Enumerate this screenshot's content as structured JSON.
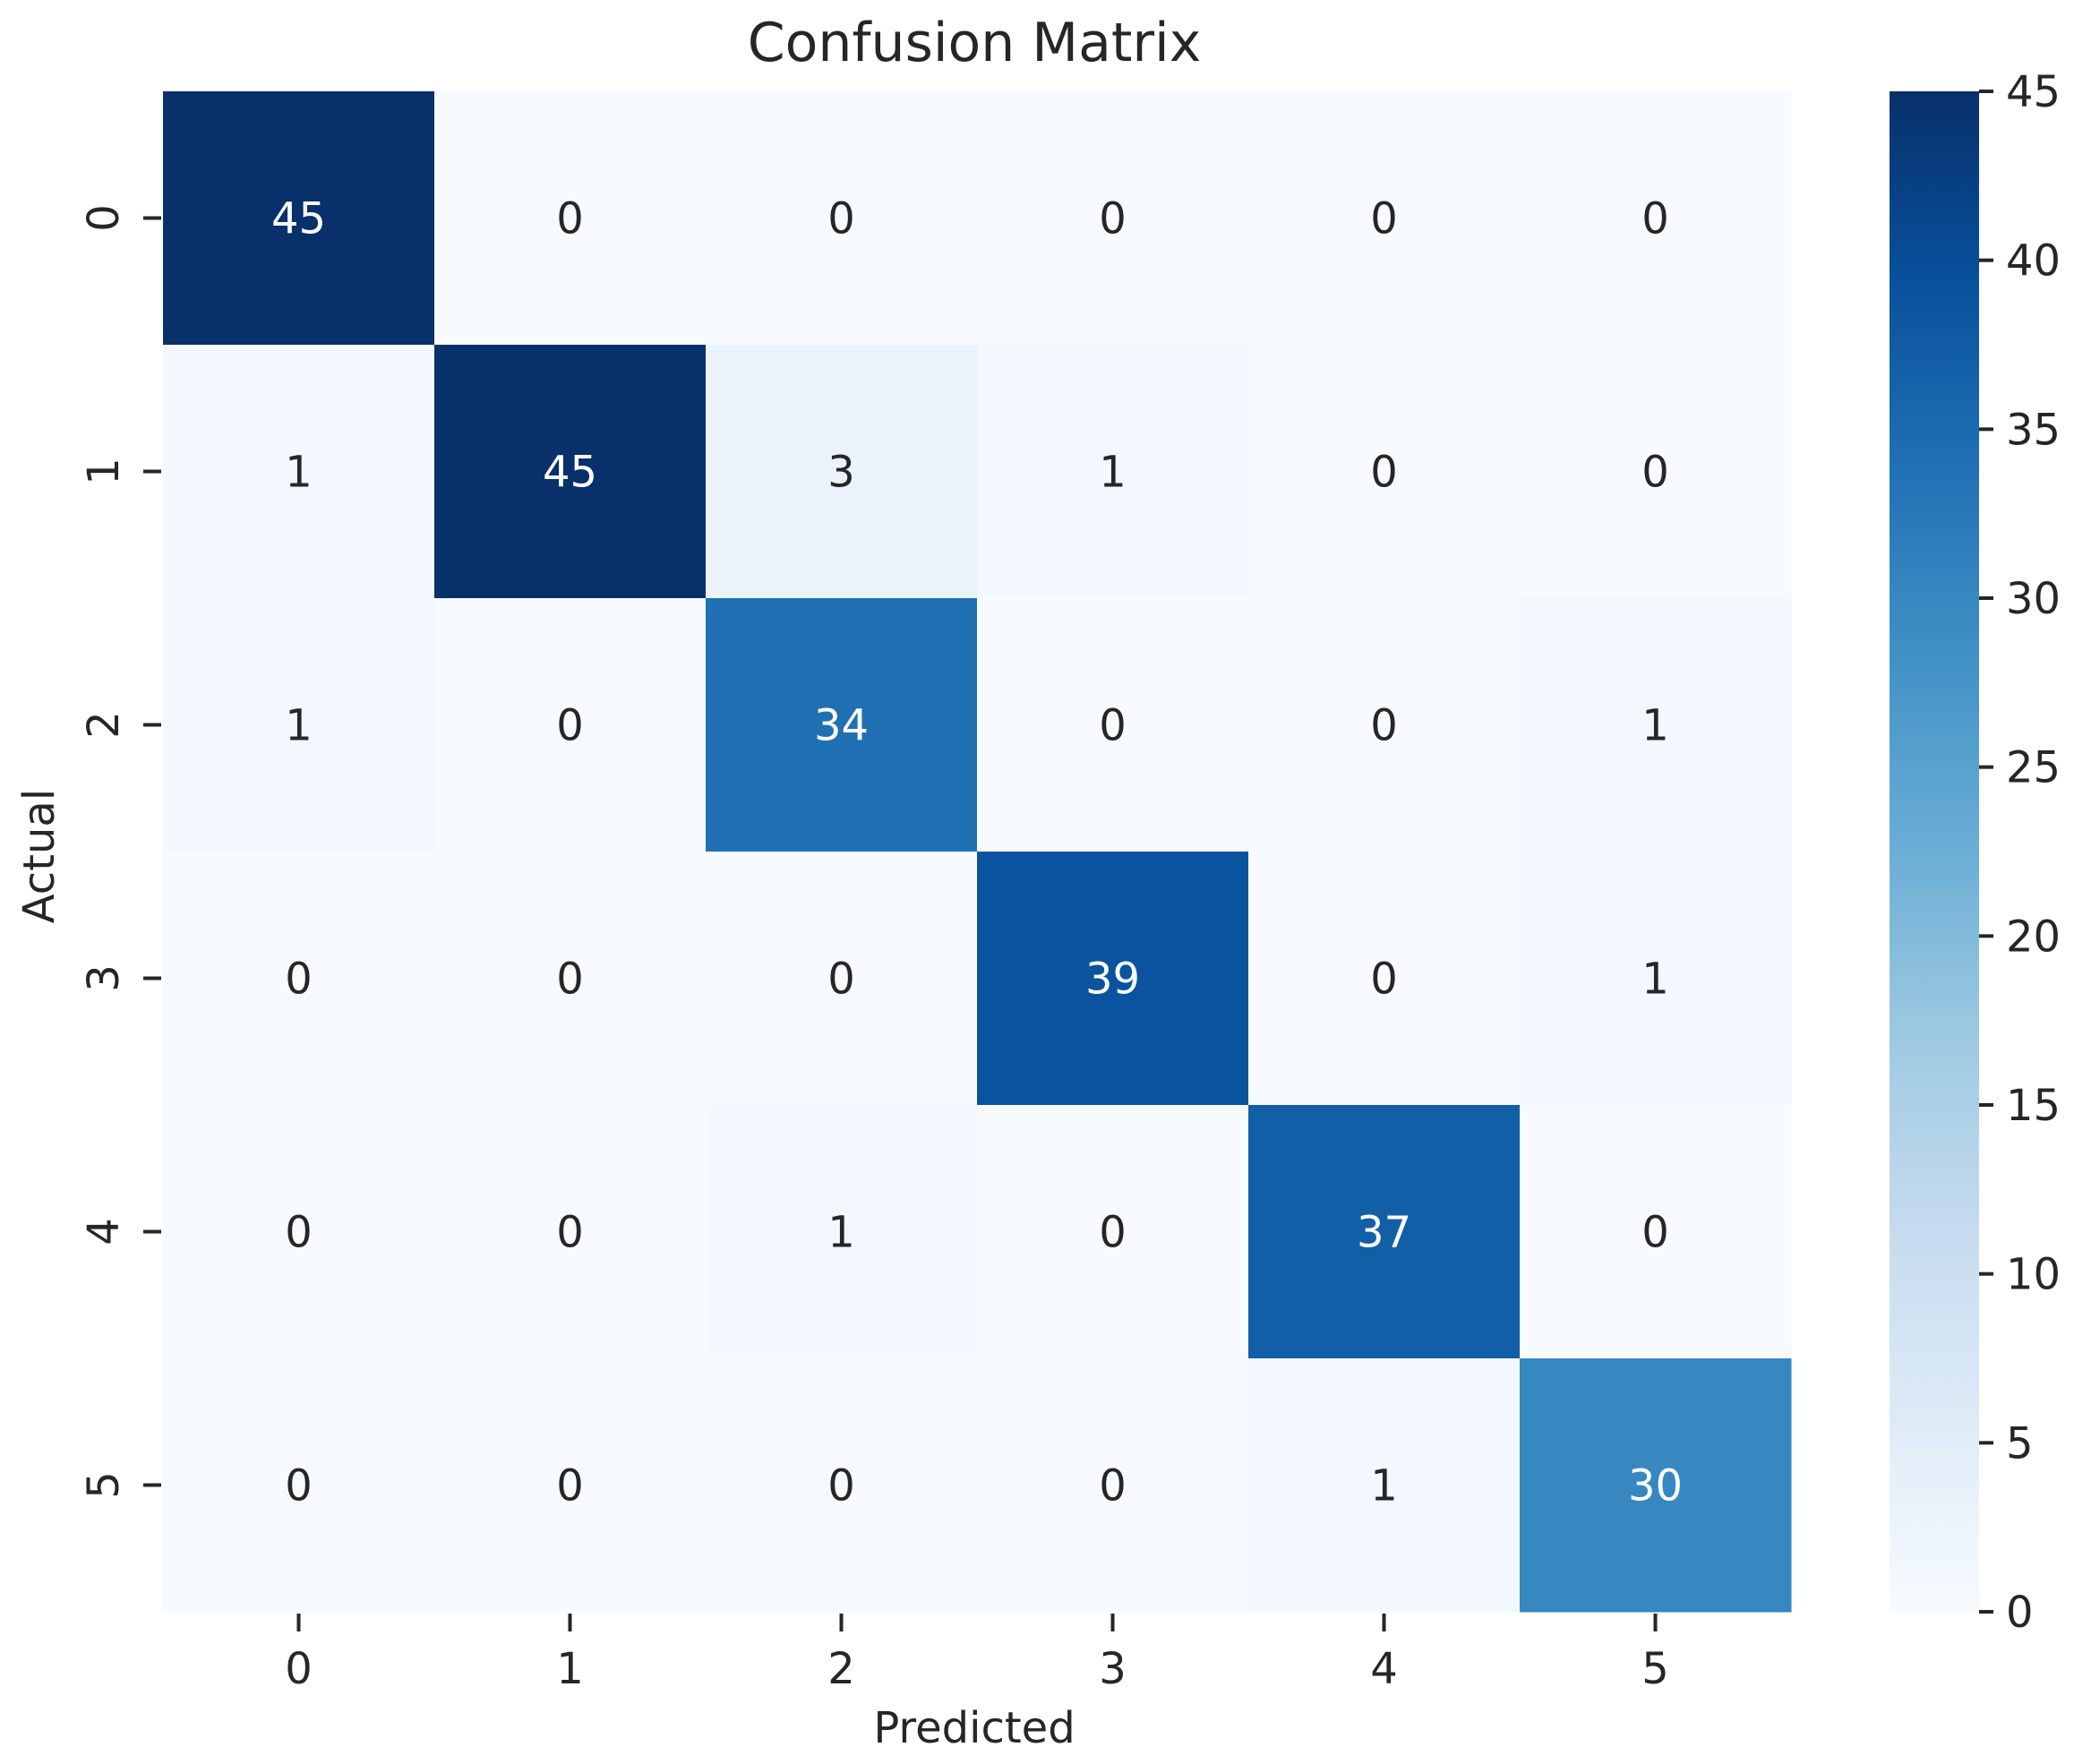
{
  "chart_data": {
    "type": "heatmap",
    "title": "Confusion Matrix",
    "xlabel": "Predicted",
    "ylabel": "Actual",
    "x_categories": [
      "0",
      "1",
      "2",
      "3",
      "4",
      "5"
    ],
    "y_categories": [
      "0",
      "1",
      "2",
      "3",
      "4",
      "5"
    ],
    "matrix": [
      [
        45,
        0,
        0,
        0,
        0,
        0
      ],
      [
        1,
        45,
        3,
        1,
        0,
        0
      ],
      [
        1,
        0,
        34,
        0,
        0,
        1
      ],
      [
        0,
        0,
        0,
        39,
        0,
        1
      ],
      [
        0,
        0,
        1,
        0,
        37,
        0
      ],
      [
        0,
        0,
        0,
        0,
        1,
        30
      ]
    ],
    "colormap": "Blues",
    "value_range": [
      0,
      45
    ],
    "colorbar_ticks": [
      "0",
      "5",
      "10",
      "15",
      "20",
      "25",
      "30",
      "35",
      "40",
      "45"
    ],
    "grid": false,
    "colors": {
      "low": "#f7fbff",
      "high": "#08306b",
      "text_dark": "#262626",
      "text_light": "#ffffff"
    }
  }
}
